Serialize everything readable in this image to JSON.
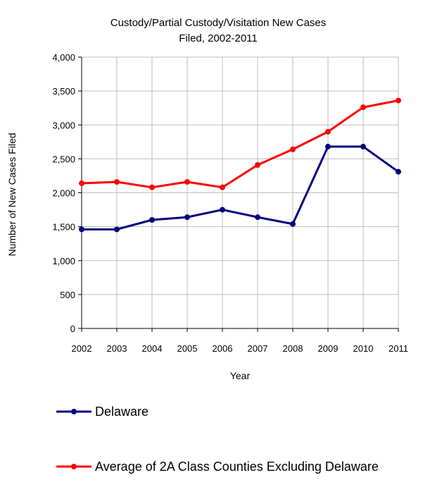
{
  "chart_data": {
    "type": "line",
    "title_line1": "Custody/Partial Custody/Visitation New  Cases",
    "title_line2": "Filed, 2002-2011",
    "xlabel": "Year",
    "ylabel": "Number of New Cases Filed",
    "categories": [
      "2002",
      "2003",
      "2004",
      "2005",
      "2006",
      "2007",
      "2008",
      "2009",
      "2010",
      "2011"
    ],
    "ylim": [
      0,
      4000
    ],
    "yticks": [
      0,
      500,
      1000,
      1500,
      2000,
      2500,
      3000,
      3500,
      4000
    ],
    "ytick_labels": [
      "0",
      "500",
      "1,000",
      "1,500",
      "2,000",
      "2,500",
      "3,000",
      "3,500",
      "4,000"
    ],
    "grid": true,
    "legend_position": "bottom",
    "series": [
      {
        "name": "Delaware",
        "color": "#000080",
        "values": [
          1460,
          1460,
          1600,
          1640,
          1750,
          1640,
          1540,
          2680,
          2680,
          2310
        ]
      },
      {
        "name": "Average of 2A Class Counties Excluding Delaware",
        "color": "#ff0000",
        "values": [
          2140,
          2160,
          2080,
          2160,
          2080,
          2410,
          2640,
          2900,
          3260,
          3360
        ]
      }
    ]
  }
}
